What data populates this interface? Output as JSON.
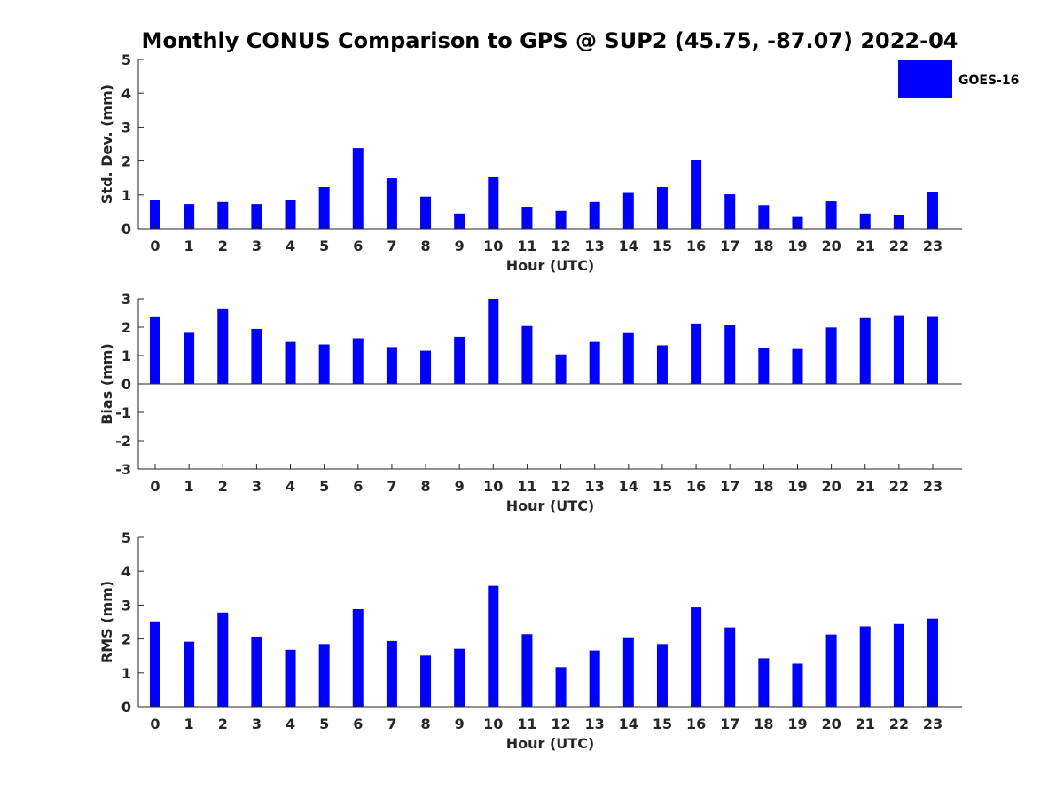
{
  "title": "Monthly CONUS Comparison to GPS @ SUP2 (45.75, -87.07) 2022-04",
  "legend": {
    "label": "GOES-16",
    "color": "#0000ff",
    "placement": "top-right"
  },
  "colors": {
    "bar": "#0000ff",
    "axis": "#262626"
  },
  "chart_data": [
    {
      "type": "bar",
      "xlabel": "Hour (UTC)",
      "ylabel": "Std. Dev. (mm)",
      "ylim": [
        0,
        5
      ],
      "yticks": [
        0,
        1,
        2,
        3,
        4,
        5
      ],
      "categories": [
        "0",
        "1",
        "2",
        "3",
        "4",
        "5",
        "6",
        "7",
        "8",
        "9",
        "10",
        "11",
        "12",
        "13",
        "14",
        "15",
        "16",
        "17",
        "18",
        "19",
        "20",
        "21",
        "22",
        "23"
      ],
      "series": [
        {
          "name": "GOES-16",
          "values": [
            0.85,
            0.73,
            0.79,
            0.73,
            0.86,
            1.23,
            2.38,
            1.49,
            0.95,
            0.45,
            1.52,
            0.63,
            0.53,
            0.79,
            1.06,
            1.23,
            2.04,
            1.02,
            0.7,
            0.35,
            0.81,
            0.45,
            0.4,
            1.08
          ]
        }
      ]
    },
    {
      "type": "bar",
      "xlabel": "Hour (UTC)",
      "ylabel": "Bias (mm)",
      "ylim": [
        -3,
        3
      ],
      "yticks": [
        -3,
        -2,
        -1,
        0,
        1,
        2,
        3
      ],
      "categories": [
        "0",
        "1",
        "2",
        "3",
        "4",
        "5",
        "6",
        "7",
        "8",
        "9",
        "10",
        "11",
        "12",
        "13",
        "14",
        "15",
        "16",
        "17",
        "18",
        "19",
        "20",
        "21",
        "22",
        "23"
      ],
      "series": [
        {
          "name": "GOES-16",
          "values": [
            2.38,
            1.8,
            2.66,
            1.94,
            1.48,
            1.39,
            1.61,
            1.3,
            1.17,
            1.66,
            3.0,
            2.04,
            1.04,
            1.48,
            1.79,
            1.36,
            2.13,
            2.09,
            1.26,
            1.23,
            1.99,
            2.32,
            2.42,
            2.39
          ]
        }
      ]
    },
    {
      "type": "bar",
      "xlabel": "Hour (UTC)",
      "ylabel": "RMS (mm)",
      "ylim": [
        0,
        5
      ],
      "yticks": [
        0,
        1,
        2,
        3,
        4,
        5
      ],
      "categories": [
        "0",
        "1",
        "2",
        "3",
        "4",
        "5",
        "6",
        "7",
        "8",
        "9",
        "10",
        "11",
        "12",
        "13",
        "14",
        "15",
        "16",
        "17",
        "18",
        "19",
        "20",
        "21",
        "22",
        "23"
      ],
      "series": [
        {
          "name": "GOES-16",
          "values": [
            2.52,
            1.92,
            2.78,
            2.07,
            1.68,
            1.85,
            2.88,
            1.94,
            1.51,
            1.71,
            3.57,
            2.14,
            1.17,
            1.66,
            2.05,
            1.85,
            2.93,
            2.34,
            1.43,
            1.27,
            2.13,
            2.37,
            2.44,
            2.6
          ]
        }
      ]
    }
  ]
}
